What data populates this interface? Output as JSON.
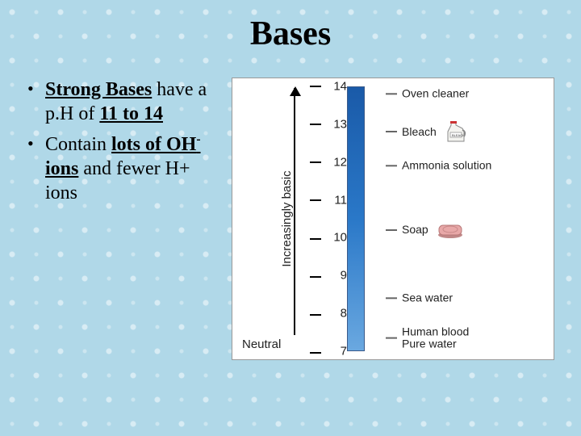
{
  "title": "Bases",
  "bullets": [
    {
      "prefix_hl": "Strong Bases",
      "mid": " have a p.H of ",
      "suffix_hl": "11 to 14"
    },
    {
      "plain_before": "Contain ",
      "prefix_hl": "lots of OH",
      "super": "-",
      "suffix_hl": "ions",
      "mid": " and fewer H+ ions"
    }
  ],
  "diagram": {
    "axis_label": "Increasingly basic",
    "neutral_label": "Neutral",
    "bar_color_top": "#1a5aa8",
    "bar_color_bottom": "#6aa8e0",
    "scale_min": 7,
    "scale_max": 14,
    "ticks": [
      14,
      13,
      12,
      11,
      10,
      9,
      8,
      7
    ],
    "items": [
      {
        "value": 13.8,
        "label": "Oven cleaner",
        "icon": null
      },
      {
        "value": 12.8,
        "label": "Bleach",
        "icon": "jug"
      },
      {
        "value": 11.9,
        "label": "Ammonia solution",
        "icon": null
      },
      {
        "value": 10.2,
        "label": "Soap",
        "icon": "soap"
      },
      {
        "value": 8.4,
        "label": "Sea water",
        "icon": null
      },
      {
        "value": 7.35,
        "label": "Human blood\nPure water",
        "icon": null
      }
    ]
  },
  "colors": {
    "background": "#b0d8e8",
    "text": "#000000",
    "diagram_bg": "#ffffff",
    "tick_text": "#222222"
  }
}
